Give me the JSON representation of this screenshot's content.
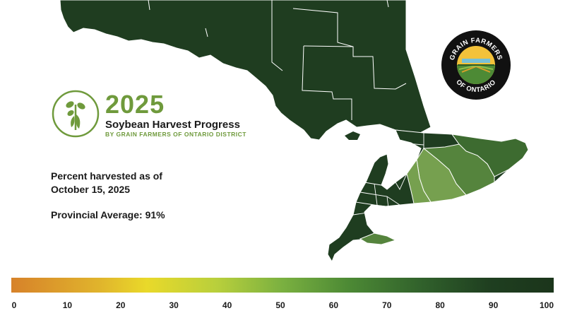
{
  "title": {
    "year": "2025",
    "heading": "Soybean Harvest Progress",
    "subheading": "BY GRAIN FARMERS OF ONTARIO DISTRICT"
  },
  "info": {
    "date_line1": "Percent harvested as of",
    "date_line2": "October 15, 2025",
    "average": "Provincial Average: 91%"
  },
  "logo": {
    "top_text": "GRAIN FARMERS",
    "bottom_text": "OF ONTARIO"
  },
  "legend": {
    "ticks": [
      "0",
      "10",
      "20",
      "30",
      "40",
      "50",
      "60",
      "70",
      "80",
      "90",
      "100"
    ],
    "min_color": "#d7822a",
    "mid_color": "#7ab040",
    "max_color": "#1b351b"
  },
  "colors": {
    "high": "#1f3d20",
    "upper": "#2b5227",
    "mid_high": "#3d6b30",
    "mid": "#55843d",
    "lower": "#76a04f",
    "border": "#ffffff",
    "water": "#ffffff",
    "accent": "#6f9a3c"
  }
}
